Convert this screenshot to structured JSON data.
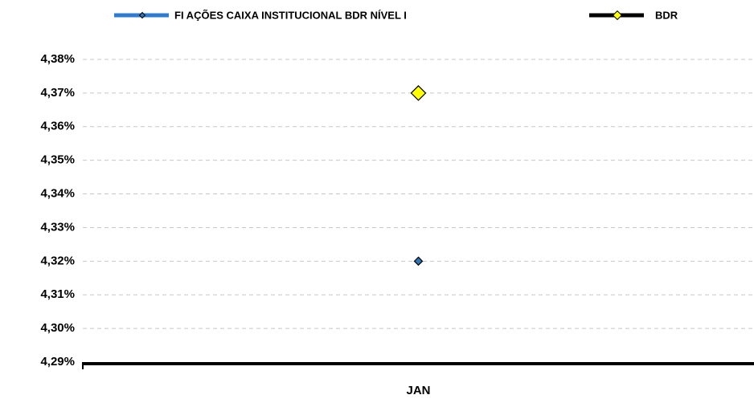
{
  "chart_data": {
    "type": "line",
    "categories": [
      "JAN"
    ],
    "series": [
      {
        "name": "FI AÇÕES CAIXA INSTITUCIONAL BDR NÍVEL I",
        "color": "#2e7bcf",
        "marker_color": "#2e75b6",
        "values": [
          4.32
        ]
      },
      {
        "name": "BDR",
        "color": "#000000",
        "marker_color": "#ffff00",
        "values": [
          4.37
        ]
      }
    ],
    "ylim": [
      4.29,
      4.38
    ],
    "yticks": [
      {
        "value": 4.29,
        "label": "4,29%"
      },
      {
        "value": 4.3,
        "label": "4,30%"
      },
      {
        "value": 4.31,
        "label": "4,31%"
      },
      {
        "value": 4.32,
        "label": "4,32%"
      },
      {
        "value": 4.33,
        "label": "4,33%"
      },
      {
        "value": 4.34,
        "label": "4,34%"
      },
      {
        "value": 4.35,
        "label": "4,35%"
      },
      {
        "value": 4.36,
        "label": "4,36%"
      },
      {
        "value": 4.37,
        "label": "4,37%"
      },
      {
        "value": 4.38,
        "label": "4,38%"
      }
    ],
    "grid": true,
    "legend": "top"
  }
}
